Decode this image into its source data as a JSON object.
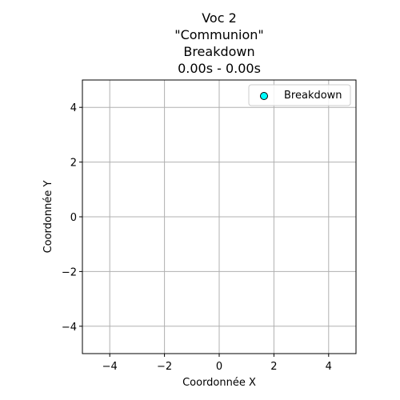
{
  "chart_data": {
    "type": "scatter",
    "title_lines": [
      "Voc 2",
      "\"Communion\"",
      "Breakdown",
      "0.00s - 0.00s"
    ],
    "xlabel": "Coordonnée X",
    "ylabel": "Coordonnée Y",
    "xlim": [
      -5,
      5
    ],
    "ylim": [
      -5,
      5
    ],
    "xticks": [
      -4,
      -2,
      0,
      2,
      4
    ],
    "yticks": [
      -4,
      -2,
      0,
      2,
      4
    ],
    "grid": true,
    "legend_position": "top-right",
    "series": [
      {
        "name": "Breakdown",
        "color": "#00ffff",
        "edge_color": "#000000",
        "points": []
      }
    ]
  }
}
